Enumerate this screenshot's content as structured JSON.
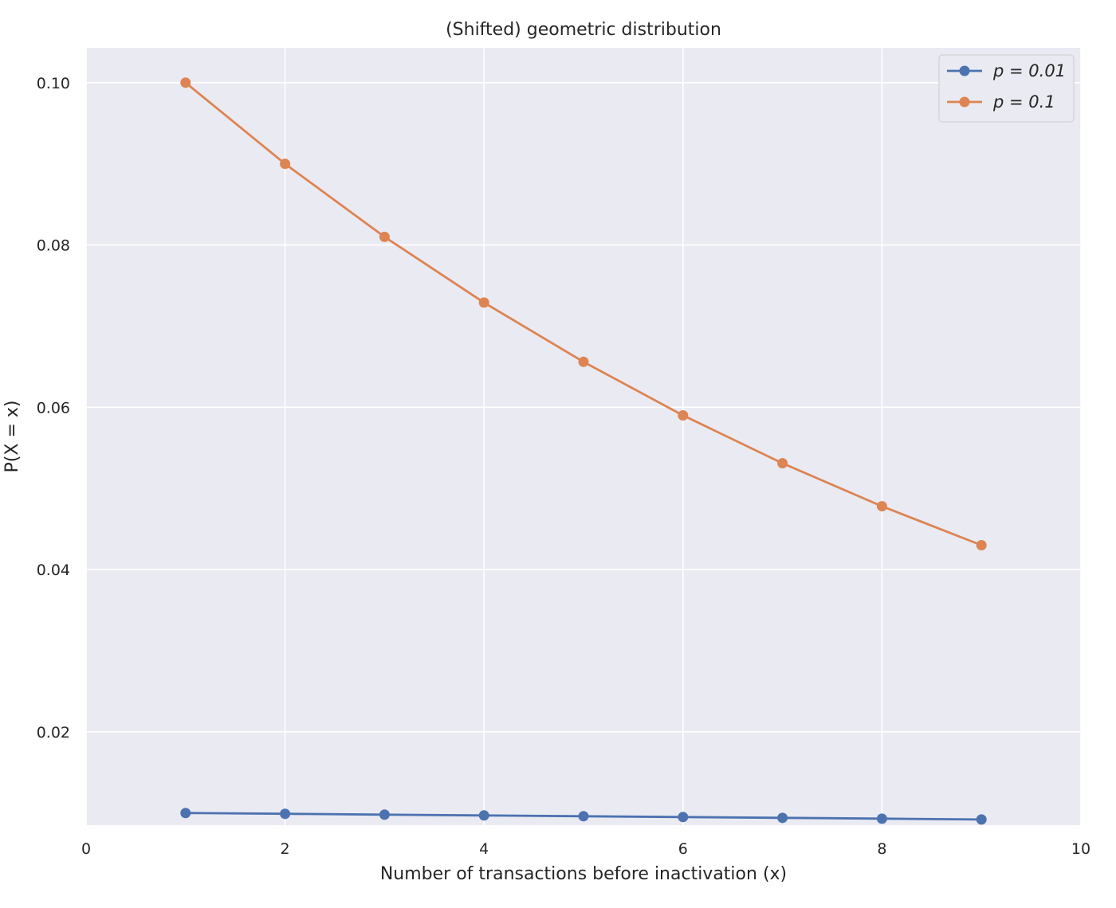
{
  "chart_data": {
    "type": "line",
    "title": "(Shifted) geometric distribution",
    "xlabel": "Number of transactions before inactivation (x)",
    "ylabel": "P(X = x)",
    "xlim": [
      0,
      10
    ],
    "ylim": [
      0.0085,
      0.1043
    ],
    "xticks": [
      0,
      2,
      4,
      6,
      8,
      10
    ],
    "xtick_labels": [
      "0",
      "2",
      "4",
      "6",
      "8",
      "10"
    ],
    "yticks": [
      0.02,
      0.04,
      0.06,
      0.08,
      0.1
    ],
    "ytick_labels": [
      "0.02",
      "0.04",
      "0.06",
      "0.08",
      "0.10"
    ],
    "grid": true,
    "legend_position": "top-right",
    "x": [
      1,
      2,
      3,
      4,
      5,
      6,
      7,
      8,
      9
    ],
    "series": [
      {
        "name": "p = 0.01",
        "color": "#4c72b0",
        "values": [
          0.01,
          0.0099,
          0.0098,
          0.0097,
          0.0096,
          0.0095,
          0.0094,
          0.0093,
          0.0092
        ]
      },
      {
        "name": "p = 0.1",
        "color": "#dd8452",
        "values": [
          0.1,
          0.09,
          0.081,
          0.0729,
          0.0656,
          0.059,
          0.0531,
          0.0478,
          0.043
        ]
      }
    ]
  },
  "style": {
    "plot_background": "#eaeaf2",
    "grid_color": "#ffffff"
  }
}
